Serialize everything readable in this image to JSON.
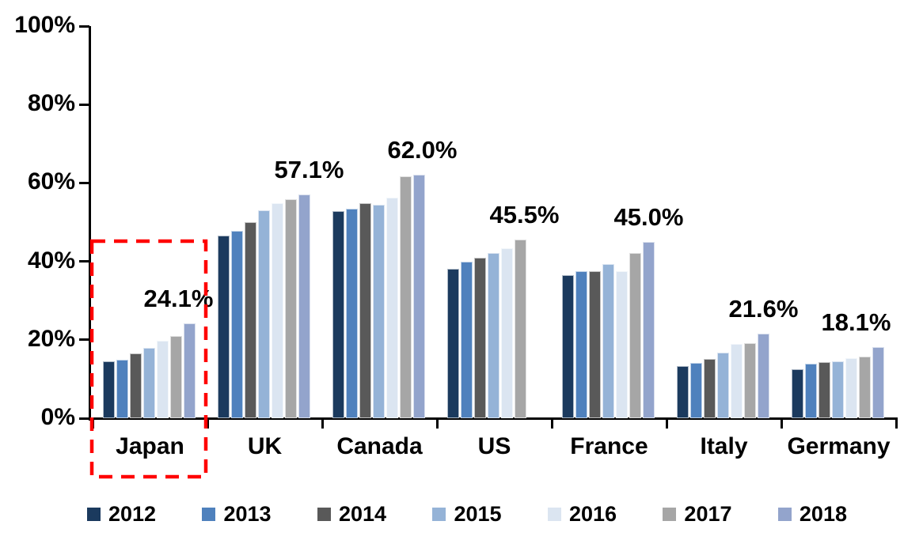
{
  "chart_data": {
    "type": "bar",
    "title": "",
    "categories": [
      "Japan",
      "UK",
      "Canada",
      "US",
      "France",
      "Italy",
      "Germany"
    ],
    "series": [
      {
        "name": "2012",
        "color": "#1B3A5E",
        "values": [
          14.6,
          46.5,
          52.9,
          38.2,
          36.4,
          13.3,
          12.5
        ]
      },
      {
        "name": "2013",
        "color": "#4F81BD",
        "values": [
          14.9,
          47.8,
          53.4,
          40.0,
          37.6,
          14.1,
          13.9
        ]
      },
      {
        "name": "2014",
        "color": "#595959",
        "values": [
          16.6,
          49.9,
          54.9,
          40.9,
          37.5,
          15.2,
          14.3
        ]
      },
      {
        "name": "2015",
        "color": "#95B3D7",
        "values": [
          17.9,
          53.0,
          54.5,
          42.1,
          39.3,
          16.8,
          14.6
        ]
      },
      {
        "name": "2016",
        "color": "#DBE5F1",
        "values": [
          19.8,
          54.8,
          56.2,
          43.4,
          37.4,
          18.9,
          15.4
        ]
      },
      {
        "name": "2017",
        "color": "#A6A6A6",
        "values": [
          21.0,
          55.9,
          61.6,
          45.5,
          42.2,
          19.1,
          15.8
        ]
      },
      {
        "name": "2018",
        "color": "#93A4CC",
        "values": [
          24.1,
          57.1,
          62.0,
          null,
          45.0,
          21.6,
          18.1
        ]
      }
    ],
    "data_labels": [
      "24.1%",
      "57.1%",
      "62.0%",
      "45.5%",
      "45.0%",
      "21.6%",
      "18.1%"
    ],
    "y_ticks": [
      "0%",
      "20%",
      "40%",
      "60%",
      "80%",
      "100%"
    ],
    "ylim": [
      0,
      100
    ],
    "grid": false,
    "legend_position": "bottom",
    "axis_color": "#000000",
    "highlight": {
      "category": "Japan",
      "style": "dashed-rectangle",
      "color": "#FF0000"
    }
  }
}
